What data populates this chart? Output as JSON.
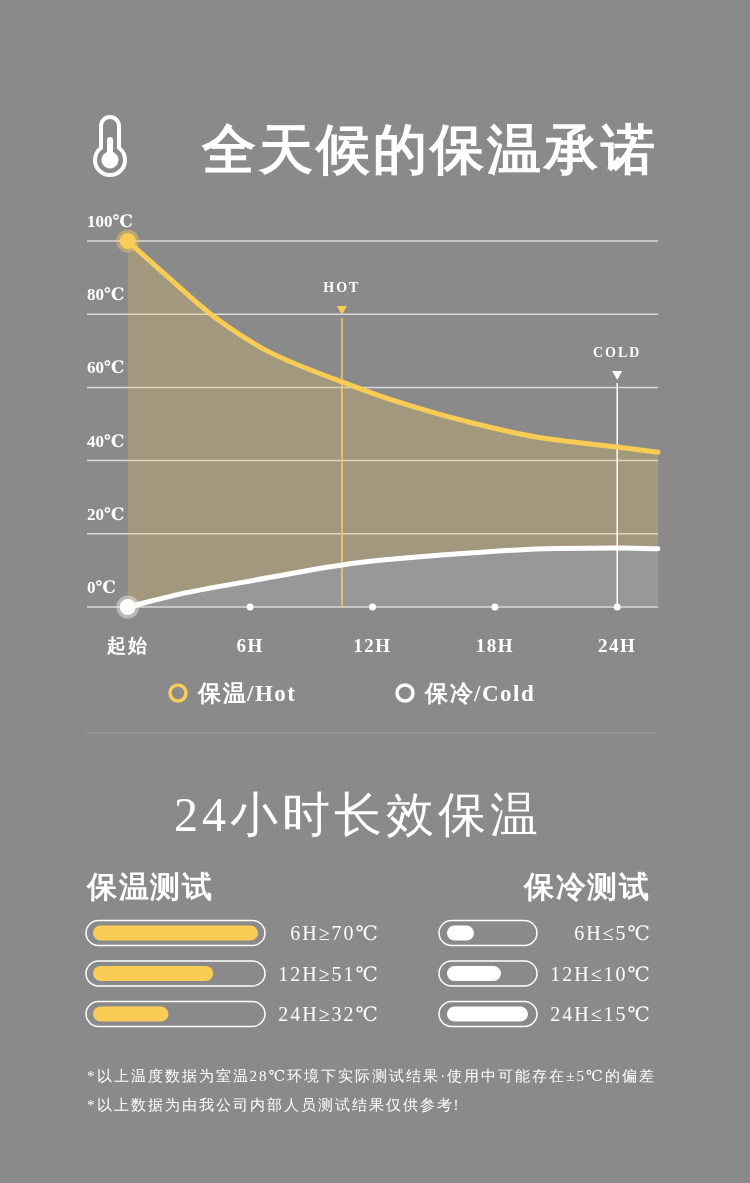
{
  "chart_data": [
    {
      "type": "area",
      "title": "全天候的保温承诺",
      "xlim": [
        -2,
        26
      ],
      "xticks": [
        {
          "value": 0,
          "label": "起始"
        },
        {
          "value": 6,
          "label": "6H"
        },
        {
          "value": 12,
          "label": "12H"
        },
        {
          "value": 18,
          "label": "18H"
        },
        {
          "value": 24,
          "label": "24H"
        }
      ],
      "ylim": [
        0,
        100
      ],
      "yticks": [
        {
          "value": 0,
          "label": "0℃"
        },
        {
          "value": 20,
          "label": "20℃"
        },
        {
          "value": 40,
          "label": "40℃"
        },
        {
          "value": 60,
          "label": "60℃"
        },
        {
          "value": 80,
          "label": "80℃"
        },
        {
          "value": 100,
          "label": "100℃"
        }
      ],
      "grid": "y",
      "legend": "bottom",
      "series": [
        {
          "name": "保温/Hot",
          "type": "area",
          "color": "#f9cc55",
          "x": [
            0,
            1.8,
            4.4,
            7,
            10.5,
            13.1,
            16.6,
            20.1,
            24,
            26
          ],
          "values": [
            100,
            91,
            78.6,
            69.5,
            61.5,
            56.3,
            50.7,
            46.4,
            43.7,
            42.3
          ]
        },
        {
          "name": "保冷/Cold",
          "type": "area",
          "color": "#ffffff",
          "x": [
            0,
            2.6,
            5.7,
            10.5,
            11.9,
            16.6,
            21,
            24,
            26
          ],
          "values": [
            0,
            3.6,
            6.8,
            11.5,
            12.5,
            14.7,
            16,
            16.1,
            15.9
          ]
        },
        {
          "type": "scatter",
          "color": "#f9cc55",
          "x": [
            0
          ],
          "values": [
            100
          ]
        },
        {
          "type": "scatter",
          "color": "#ffffff",
          "x": [
            0
          ],
          "values": [
            0
          ]
        }
      ],
      "ref_lines": [
        {
          "axis": "x",
          "value": 10.5,
          "label": "HOT",
          "color": "#f9cc55"
        },
        {
          "axis": "x",
          "value": 24,
          "label": "COLD",
          "color": "#ffffff"
        }
      ]
    },
    {
      "type": "bar",
      "orientation": "horizontal",
      "title": "保温测试",
      "annotations": [
        "24小时长效保温"
      ],
      "categories": [
        null,
        null,
        null
      ],
      "values": [
        70,
        51,
        32
      ],
      "color": "#f9cc55",
      "value_labels": [
        "6H≥70℃",
        "12H≥51℃",
        "24H≥32℃"
      ]
    },
    {
      "type": "bar",
      "orientation": "horizontal",
      "title": "保冷测试",
      "annotations": [
        "*以上温度数据为室温28℃环境下实际测试结果·使用中可能存在±5℃的偏差",
        "*以上数据为由我公司内部人员测试结果仅供参考!"
      ],
      "categories": [
        null,
        null,
        null
      ],
      "values": [
        5,
        10,
        15
      ],
      "color": "#ffffff",
      "value_labels": [
        "6H≤5℃",
        "12H≤10℃",
        "24H≤15℃"
      ]
    }
  ]
}
